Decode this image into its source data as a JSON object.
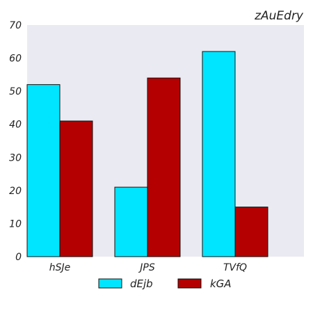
{
  "chart_data": {
    "type": "bar",
    "title": "zAuEdry",
    "categories": [
      "hSJe",
      "JPS",
      "TVfQ"
    ],
    "series": [
      {
        "name": "dEjb",
        "values": [
          52,
          21,
          62
        ],
        "color": "#00e5ff"
      },
      {
        "name": "kGA",
        "values": [
          41,
          54,
          15
        ],
        "color": "#b40000"
      }
    ],
    "ylim": [
      0,
      70
    ],
    "yticks": [
      0,
      10,
      20,
      30,
      40,
      50,
      60,
      70
    ],
    "grid": false,
    "legend": "bottom-center",
    "plot_background": "#eaeaf2"
  }
}
